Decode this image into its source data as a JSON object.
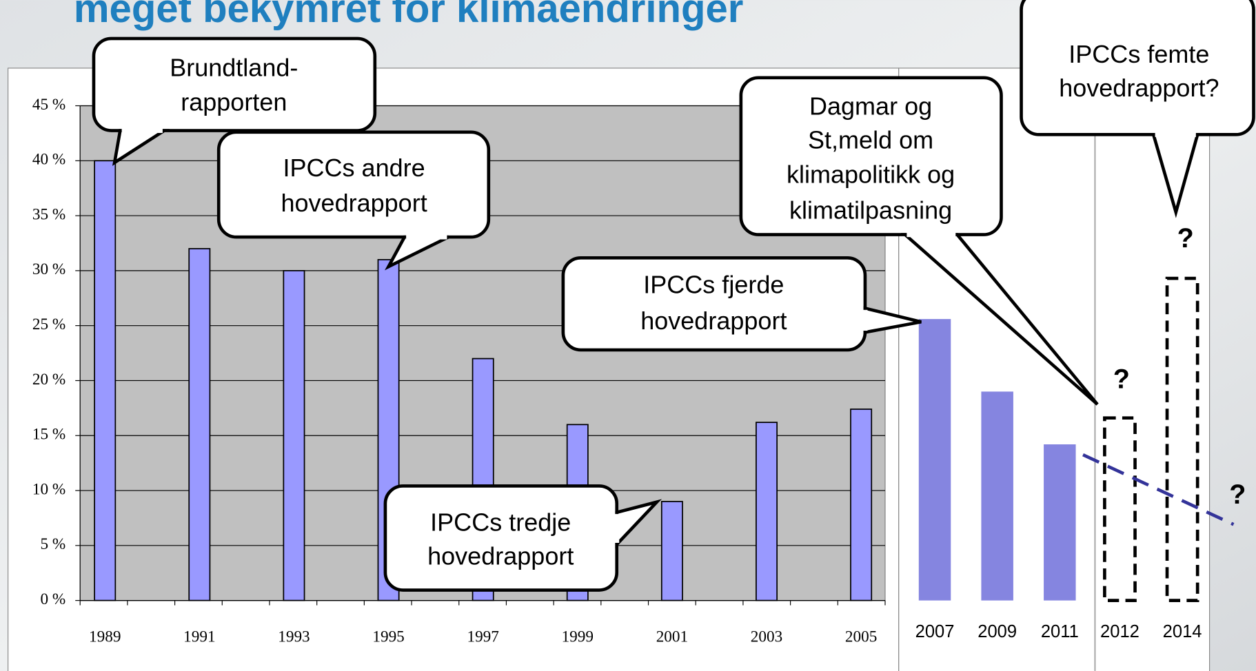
{
  "title": "meget bekymret for klimaendringer",
  "chart_data": [
    {
      "type": "bar",
      "categories": [
        "1989",
        "1991",
        "1993",
        "1995",
        "1997",
        "1999",
        "2001",
        "2003",
        "2005"
      ],
      "values": [
        40,
        32,
        30,
        31,
        22,
        16,
        9,
        16.2,
        17.4
      ],
      "color": "#9999ff",
      "ylim": [
        0,
        45
      ],
      "yticks": [
        {
          "value": 0,
          "label": "0 %"
        },
        {
          "value": 5,
          "label": "5 %"
        },
        {
          "value": 10,
          "label": "10 %"
        },
        {
          "value": 15,
          "label": "15 %"
        },
        {
          "value": 20,
          "label": "20 %"
        },
        {
          "value": 25,
          "label": "25 %"
        },
        {
          "value": 30,
          "label": "30 %"
        },
        {
          "value": 35,
          "label": "35 %"
        },
        {
          "value": 40,
          "label": "40 %"
        },
        {
          "value": 45,
          "label": "45 %"
        }
      ],
      "grid": true
    },
    {
      "type": "bar",
      "categories": [
        "2007",
        "2009",
        "2011"
      ],
      "values": [
        25.6,
        19,
        14.2
      ],
      "color": "#8585e0",
      "ylim": [
        0,
        45
      ]
    },
    {
      "type": "bar",
      "style": "dashed",
      "categories": [
        "2012",
        "2014"
      ],
      "values": [
        16.6,
        29.3
      ],
      "color": "#000000",
      "ylim": [
        0,
        45
      ]
    }
  ],
  "annotations": [
    {
      "lines": [
        "Brundtland-",
        "rapporten"
      ]
    },
    {
      "lines": [
        "IPCCs andre",
        "hovedrapport"
      ]
    },
    {
      "lines": [
        "IPCCs fjerde",
        "hovedrapport"
      ]
    },
    {
      "lines": [
        "IPCCs tredje",
        "hovedrapport"
      ]
    },
    {
      "lines": [
        "Dagmar og",
        "St,meld om",
        "klimapolitikk og",
        "klimatilpasning"
      ]
    },
    {
      "lines": [
        "IPCCs femte",
        "hovedrapport?"
      ]
    }
  ],
  "question_marks": [
    "?",
    "?",
    "?"
  ]
}
